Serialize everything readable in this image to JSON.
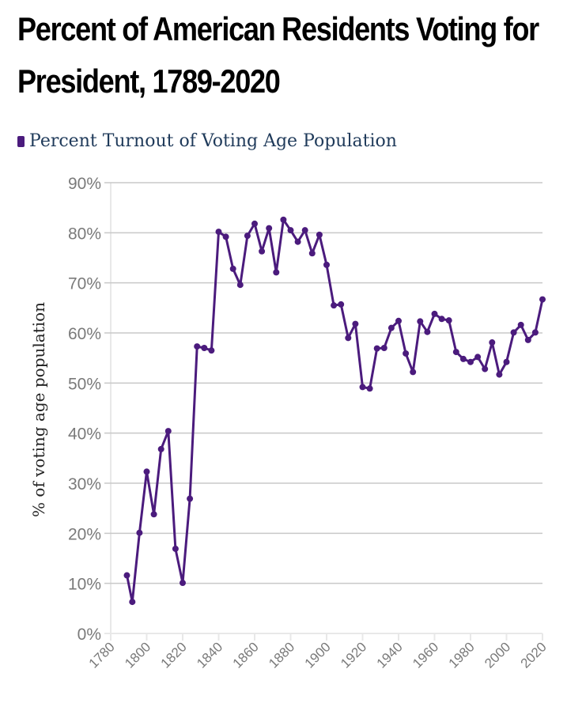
{
  "chart_data": {
    "type": "line",
    "title": "Percent of American Residents Voting for President, 1789-2020",
    "xlabel": "",
    "ylabel": "% of voting age population",
    "xlim": [
      1780,
      2020
    ],
    "ylim": [
      0,
      90
    ],
    "grid": true,
    "legend_position": "top-left",
    "x_ticks": [
      1780,
      1800,
      1820,
      1840,
      1860,
      1880,
      1900,
      1920,
      1940,
      1960,
      1980,
      2000,
      2020
    ],
    "y_ticks": [
      "0%",
      "10%",
      "20%",
      "30%",
      "40%",
      "50%",
      "60%",
      "70%",
      "80%",
      "90%"
    ],
    "y_tick_values": [
      0,
      10,
      20,
      30,
      40,
      50,
      60,
      70,
      80,
      90
    ],
    "series": [
      {
        "name": "Percent Turnout of Voting Age Population",
        "color": "#4b1b7d",
        "x": [
          1789,
          1792,
          1796,
          1800,
          1804,
          1808,
          1812,
          1816,
          1820,
          1824,
          1828,
          1832,
          1836,
          1840,
          1844,
          1848,
          1852,
          1856,
          1860,
          1864,
          1868,
          1872,
          1876,
          1880,
          1884,
          1888,
          1892,
          1896,
          1900,
          1904,
          1908,
          1912,
          1916,
          1920,
          1924,
          1928,
          1932,
          1936,
          1940,
          1944,
          1948,
          1952,
          1956,
          1960,
          1964,
          1968,
          1972,
          1976,
          1980,
          1984,
          1988,
          1992,
          1996,
          2000,
          2004,
          2008,
          2012,
          2016,
          2020
        ],
        "values": [
          11.6,
          6.3,
          20.1,
          32.3,
          23.8,
          36.8,
          40.4,
          16.9,
          10.1,
          26.9,
          57.3,
          57.0,
          56.5,
          80.2,
          79.2,
          72.8,
          69.6,
          79.4,
          81.8,
          76.3,
          80.9,
          72.1,
          82.6,
          80.5,
          78.2,
          80.5,
          75.9,
          79.6,
          73.6,
          65.5,
          65.7,
          59.0,
          61.8,
          49.2,
          48.9,
          56.9,
          57.0,
          61.0,
          62.4,
          55.9,
          52.2,
          62.3,
          60.2,
          63.8,
          62.8,
          62.5,
          56.2,
          54.8,
          54.2,
          55.2,
          52.8,
          58.1,
          51.7,
          54.2,
          60.1,
          61.6,
          58.6,
          60.1,
          66.7
        ]
      }
    ]
  },
  "header": {
    "title_line1": "Percent of American Residents Voting for",
    "title_line2": "President, 1789-2020"
  },
  "legend": {
    "label": "Percent Turnout of Voting Age Population"
  }
}
